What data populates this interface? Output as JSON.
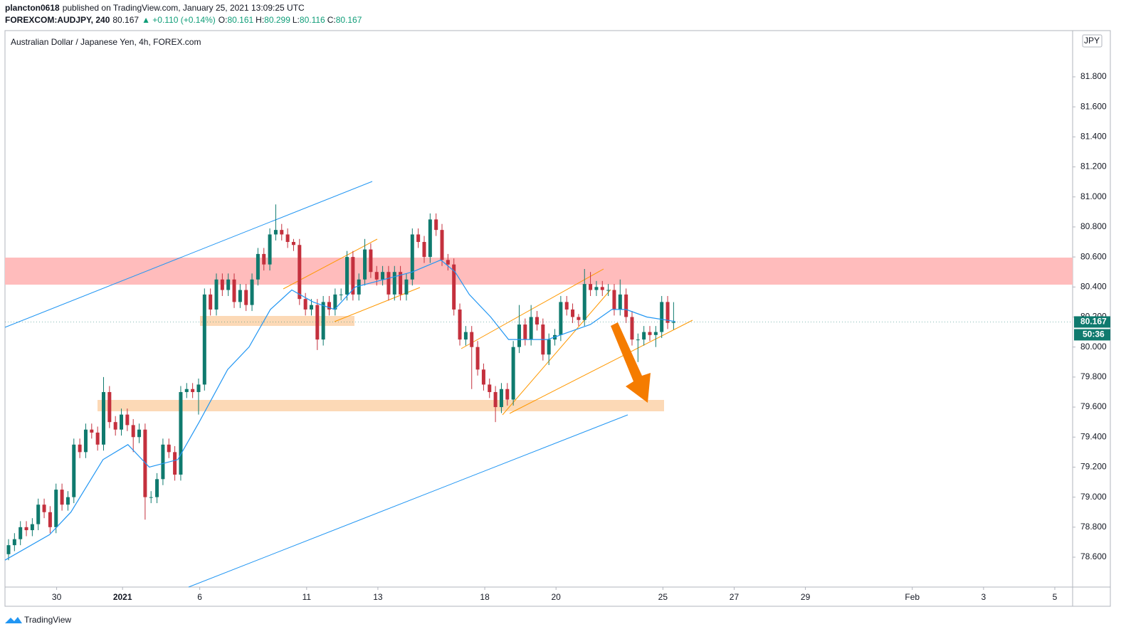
{
  "header": {
    "publisher": "plancton0618",
    "published": "published on TradingView.com, January 25, 2021 13:09:25 UTC",
    "symbol": "FOREXCOM:AUDJPY, 240",
    "price": "80.167",
    "change": "▲ +0.110 (+0.14%)",
    "ohlc": [
      {
        "label": "O:",
        "value": "80.161"
      },
      {
        "label": "H:",
        "value": "80.299"
      },
      {
        "label": "L:",
        "value": "80.116"
      },
      {
        "label": "C:",
        "value": "80.167"
      }
    ]
  },
  "currency_badge": "JPY",
  "countdown": "50:36",
  "footer": {
    "brand": "TradingView"
  },
  "chart_data": {
    "type": "candlestick",
    "title": "Australian Dollar / Japanese Yen, 4h, FOREX.com",
    "up_color": "#0f7a6e",
    "down_color": "#c4303d",
    "xlim": [
      -0.6,
      179.2
    ],
    "xticks": [
      {
        "value": 8.1,
        "label": "30"
      },
      {
        "value": 19.2,
        "label": "2021"
      },
      {
        "value": 32.2,
        "label": "6"
      },
      {
        "value": 50.2,
        "label": "11"
      },
      {
        "value": 62.2,
        "label": "13"
      },
      {
        "value": 80.2,
        "label": "18"
      },
      {
        "value": 92.2,
        "label": "20"
      },
      {
        "value": 110.2,
        "label": "25"
      },
      {
        "value": 122.2,
        "label": "27"
      },
      {
        "value": 134.2,
        "label": "29"
      },
      {
        "value": 152.2,
        "label": "Feb"
      },
      {
        "value": 164.2,
        "label": "3"
      },
      {
        "value": 176.2,
        "label": "5"
      }
    ],
    "ylim": [
      78.401,
      82.108
    ],
    "yticks": [
      {
        "value": 78.6,
        "label": "78.600"
      },
      {
        "value": 78.8,
        "label": "78.800"
      },
      {
        "value": 79.0,
        "label": "79.000"
      },
      {
        "value": 79.2,
        "label": "79.200"
      },
      {
        "value": 79.4,
        "label": "79.400"
      },
      {
        "value": 79.6,
        "label": "79.600"
      },
      {
        "value": 79.8,
        "label": "79.800"
      },
      {
        "value": 80.0,
        "label": "80.000"
      },
      {
        "value": 80.2,
        "label": "80.200"
      },
      {
        "value": 80.4,
        "label": "80.400"
      },
      {
        "value": 80.6,
        "label": "80.600"
      },
      {
        "value": 80.8,
        "label": "80.800"
      },
      {
        "value": 81.0,
        "label": "81.000"
      },
      {
        "value": 81.2,
        "label": "81.200"
      },
      {
        "value": 81.4,
        "label": "81.400"
      },
      {
        "value": 81.6,
        "label": "81.600"
      },
      {
        "value": 81.8,
        "label": "81.800"
      }
    ],
    "grid": false,
    "open": [
      78.62,
      78.68,
      78.72,
      78.8,
      78.78,
      78.82,
      78.95,
      78.9,
      78.8,
      79.05,
      78.95,
      79.0,
      79.35,
      79.3,
      79.45,
      79.43,
      79.35,
      79.7,
      79.5,
      79.45,
      79.55,
      79.48,
      79.4,
      79.45,
      79.0,
      79.0,
      79.12,
      79.35,
      79.3,
      79.15,
      79.7,
      79.72,
      79.7,
      79.75,
      80.35,
      80.25,
      80.45,
      80.38,
      80.45,
      80.3,
      80.38,
      80.28,
      80.45,
      80.62,
      80.55,
      80.75,
      80.78,
      80.75,
      80.7,
      80.68,
      80.32,
      80.25,
      80.28,
      80.05,
      80.3,
      80.25,
      80.35,
      80.35,
      80.6,
      80.35,
      80.45,
      80.65,
      80.5,
      80.45,
      80.5,
      80.35,
      80.5,
      80.35,
      80.45,
      80.75,
      80.7,
      80.6,
      80.85,
      80.78,
      80.58,
      80.55,
      80.25,
      80.05,
      80.1,
      80.0,
      79.85,
      79.75,
      79.7,
      79.6,
      79.72,
      79.65,
      80.0,
      80.15,
      80.05,
      80.2,
      80.15,
      79.95,
      80.05,
      80.08,
      80.3,
      80.25,
      80.2,
      80.18,
      80.42,
      80.38,
      80.4,
      80.38,
      80.38,
      80.25,
      80.35,
      80.2,
      80.05,
      80.05,
      80.1,
      80.08,
      80.1,
      80.3,
      80.161
    ],
    "high": [
      78.72,
      78.76,
      78.84,
      78.84,
      78.86,
      78.99,
      78.99,
      78.94,
      79.09,
      79.09,
      79.04,
      79.39,
      79.39,
      79.49,
      79.49,
      79.47,
      79.8,
      79.74,
      79.54,
      79.59,
      79.59,
      79.52,
      79.49,
      79.49,
      79.04,
      79.16,
      79.39,
      79.39,
      79.34,
      79.74,
      79.76,
      79.76,
      79.79,
      80.39,
      80.39,
      80.49,
      80.49,
      80.49,
      80.49,
      80.42,
      80.42,
      80.49,
      80.66,
      80.66,
      80.79,
      80.95,
      80.82,
      80.79,
      80.72,
      80.72,
      80.36,
      80.32,
      80.32,
      80.34,
      80.34,
      80.39,
      80.39,
      80.64,
      80.64,
      80.49,
      80.72,
      80.69,
      80.54,
      80.54,
      80.54,
      80.54,
      80.54,
      80.49,
      80.79,
      80.79,
      80.74,
      80.89,
      80.89,
      80.82,
      80.62,
      80.59,
      80.29,
      80.14,
      80.14,
      80.04,
      79.89,
      79.79,
      79.74,
      79.76,
      79.76,
      80.04,
      80.28,
      80.19,
      80.28,
      80.24,
      80.19,
      80.09,
      80.12,
      80.34,
      80.34,
      80.29,
      80.22,
      80.52,
      80.5,
      80.44,
      80.44,
      80.42,
      80.42,
      80.45,
      80.39,
      80.24,
      80.09,
      80.14,
      80.14,
      80.14,
      80.34,
      80.34,
      80.299
    ],
    "low": [
      78.58,
      78.64,
      78.68,
      78.74,
      78.74,
      78.78,
      78.86,
      78.76,
      78.76,
      78.91,
      78.91,
      78.96,
      79.26,
      79.26,
      79.39,
      79.31,
      79.31,
      79.46,
      79.41,
      79.41,
      79.44,
      79.3,
      79.36,
      78.85,
      78.96,
      78.96,
      79.08,
      79.26,
      79.11,
      79.11,
      79.66,
      79.66,
      79.55,
      79.71,
      80.21,
      80.21,
      80.34,
      80.34,
      80.26,
      80.26,
      80.24,
      80.24,
      80.41,
      80.51,
      80.51,
      80.71,
      80.71,
      80.66,
      80.64,
      80.28,
      80.21,
      80.21,
      79.98,
      80.01,
      80.21,
      80.21,
      80.31,
      80.31,
      80.31,
      80.31,
      80.41,
      80.46,
      80.41,
      80.41,
      80.31,
      80.31,
      80.31,
      80.31,
      80.41,
      80.66,
      80.56,
      80.56,
      80.74,
      80.54,
      80.51,
      80.21,
      80.01,
      80.01,
      79.72,
      79.81,
      79.71,
      79.66,
      79.5,
      79.56,
      79.61,
      79.61,
      79.96,
      80.01,
      80.01,
      80.11,
      79.91,
      79.88,
      80.01,
      80.04,
      80.21,
      80.16,
      80.14,
      80.14,
      80.34,
      80.34,
      80.34,
      80.34,
      80.21,
      80.21,
      80.16,
      80.01,
      79.9,
      80.01,
      80.04,
      80.0,
      80.06,
      80.12,
      80.116
    ],
    "close": [
      78.68,
      78.72,
      78.8,
      78.78,
      78.82,
      78.95,
      78.9,
      78.8,
      79.05,
      78.95,
      79.0,
      79.35,
      79.3,
      79.45,
      79.43,
      79.35,
      79.7,
      79.5,
      79.45,
      79.55,
      79.48,
      79.4,
      79.45,
      79.0,
      79.0,
      79.12,
      79.35,
      79.3,
      79.15,
      79.7,
      79.72,
      79.7,
      79.75,
      80.35,
      80.25,
      80.45,
      80.38,
      80.45,
      80.3,
      80.38,
      80.28,
      80.45,
      80.62,
      80.55,
      80.75,
      80.78,
      80.75,
      80.7,
      80.68,
      80.32,
      80.25,
      80.28,
      80.05,
      80.3,
      80.25,
      80.35,
      80.35,
      80.6,
      80.35,
      80.45,
      80.65,
      80.5,
      80.45,
      80.5,
      80.35,
      80.5,
      80.35,
      80.45,
      80.75,
      80.7,
      80.6,
      80.85,
      80.78,
      80.58,
      80.55,
      80.25,
      80.05,
      80.1,
      80.0,
      79.85,
      79.75,
      79.7,
      79.6,
      79.72,
      79.65,
      80.0,
      80.15,
      80.05,
      80.2,
      80.15,
      79.95,
      80.05,
      80.08,
      80.3,
      80.25,
      80.2,
      80.18,
      80.42,
      80.38,
      80.4,
      80.38,
      80.38,
      80.25,
      80.35,
      80.2,
      80.05,
      80.05,
      80.1,
      80.08,
      80.1,
      80.3,
      80.161,
      80.167
    ],
    "ma": {
      "color": "#2196f3",
      "x": [
        -0.6,
        6.9,
        10.5,
        15.9,
        20.1,
        23.7,
        28.5,
        32.1,
        36.9,
        40.5,
        44.1,
        47.7,
        51.3,
        54.9,
        58.4,
        63.2,
        68,
        72.8,
        75.2,
        77.6,
        81.2,
        84.2,
        87.2,
        90.8,
        94.4,
        98,
        101.6,
        104,
        107.5,
        112.3
      ],
      "values": [
        78.58,
        78.75,
        78.9,
        79.25,
        79.35,
        79.2,
        79.25,
        79.5,
        79.85,
        80.0,
        80.25,
        80.38,
        80.3,
        80.25,
        80.4,
        80.45,
        80.5,
        80.58,
        80.5,
        80.35,
        80.2,
        80.05,
        80.05,
        80.05,
        80.1,
        80.15,
        80.25,
        80.25,
        80.2,
        80.17
      ]
    }
  }
}
